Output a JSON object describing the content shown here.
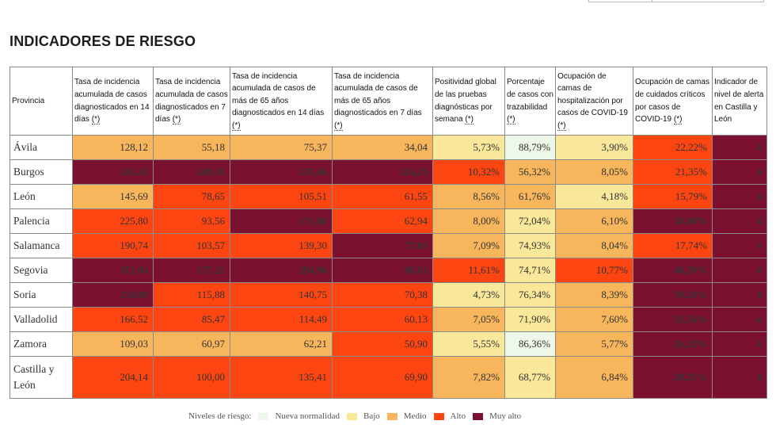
{
  "title": "INDICADORES DE RIESGO",
  "colors": {
    "nueva_normalidad": "#edf8e9",
    "bajo": "#f9e79a",
    "medio": "#f7b55c",
    "alto": "#fd4512",
    "muy_alto": "#7b1030"
  },
  "table": {
    "headers": [
      {
        "text": "Provincia",
        "star": ""
      },
      {
        "text": "Tasa de incidencia acumulada de casos diagnosticados en 14 días ",
        "star": "(*)"
      },
      {
        "text": "Tasa de incidencia acumulada de casos diagnosticados en 7 días ",
        "star": "(*)"
      },
      {
        "text": "Tasa de incidencia acumulada de casos de más de 65 años diagnosticados en 14 días ",
        "star": "(*)"
      },
      {
        "text": "Tasa de incidencia acumulada de casos de más de 65 años diagnosticados en 7 días ",
        "star": "(*)"
      },
      {
        "text": "Positividad global de las pruebas diagnósticas por semana ",
        "star": "(*)"
      },
      {
        "text": "Porcentaje de casos con trazabilidad ",
        "star": "(*)"
      },
      {
        "text": "Ocupación de camas de hospitalización por casos de COVID-19 ",
        "star": "(*)"
      },
      {
        "text": "Ocupación de camas de cuidados críticos por casos de COVID-19 ",
        "star": "(*)"
      },
      {
        "text": "Indicador de nivel de alerta en Castilla y León",
        "star": ""
      }
    ],
    "rows": [
      {
        "provincia": "Ávila",
        "cells": [
          {
            "v": "128,12",
            "lvl": "m"
          },
          {
            "v": "55,18",
            "lvl": "m"
          },
          {
            "v": "75,37",
            "lvl": "m"
          },
          {
            "v": "34,04",
            "lvl": "m"
          },
          {
            "v": "5,73%",
            "lvl": "b"
          },
          {
            "v": "88,79%",
            "lvl": "nn"
          },
          {
            "v": "3,90%",
            "lvl": "b"
          },
          {
            "v": "22,22%",
            "lvl": "a"
          },
          {
            "v": "4",
            "lvl": "ma"
          }
        ]
      },
      {
        "provincia": "Burgos",
        "cells": [
          {
            "v": "331,33",
            "lvl": "ma"
          },
          {
            "v": "149,31",
            "lvl": "ma"
          },
          {
            "v": "235,46",
            "lvl": "ma"
          },
          {
            "v": "114,23",
            "lvl": "ma"
          },
          {
            "v": "10,32%",
            "lvl": "a"
          },
          {
            "v": "56,32%",
            "lvl": "m"
          },
          {
            "v": "8,05%",
            "lvl": "m"
          },
          {
            "v": "21,35%",
            "lvl": "a"
          },
          {
            "v": "4",
            "lvl": "ma"
          }
        ]
      },
      {
        "provincia": "León",
        "cells": [
          {
            "v": "145,69",
            "lvl": "m"
          },
          {
            "v": "78,65",
            "lvl": "a"
          },
          {
            "v": "105,51",
            "lvl": "a"
          },
          {
            "v": "61,55",
            "lvl": "a"
          },
          {
            "v": "8,56%",
            "lvl": "m"
          },
          {
            "v": "61,76%",
            "lvl": "m"
          },
          {
            "v": "4,18%",
            "lvl": "b"
          },
          {
            "v": "15,79%",
            "lvl": "a"
          },
          {
            "v": "4",
            "lvl": "ma"
          }
        ]
      },
      {
        "provincia": "Palencia",
        "cells": [
          {
            "v": "225,80",
            "lvl": "a"
          },
          {
            "v": "93,56",
            "lvl": "a"
          },
          {
            "v": "171,88",
            "lvl": "ma"
          },
          {
            "v": "62,94",
            "lvl": "a"
          },
          {
            "v": "8,00%",
            "lvl": "m"
          },
          {
            "v": "72,04%",
            "lvl": "b"
          },
          {
            "v": "6,10%",
            "lvl": "m"
          },
          {
            "v": "50,00%",
            "lvl": "ma"
          },
          {
            "v": "4",
            "lvl": "ma"
          }
        ]
      },
      {
        "provincia": "Salamanca",
        "cells": [
          {
            "v": "190,74",
            "lvl": "a"
          },
          {
            "v": "103,57",
            "lvl": "a"
          },
          {
            "v": "139,30",
            "lvl": "a"
          },
          {
            "v": "77,01",
            "lvl": "ma"
          },
          {
            "v": "7,09%",
            "lvl": "m"
          },
          {
            "v": "74,93%",
            "lvl": "b"
          },
          {
            "v": "8,04%",
            "lvl": "m"
          },
          {
            "v": "17,74%",
            "lvl": "a"
          },
          {
            "v": "4",
            "lvl": "ma"
          }
        ]
      },
      {
        "provincia": "Segovia",
        "cells": [
          {
            "v": "372,04",
            "lvl": "ma"
          },
          {
            "v": "177,22",
            "lvl": "ma"
          },
          {
            "v": "194,96",
            "lvl": "ma"
          },
          {
            "v": "86,01",
            "lvl": "ma"
          },
          {
            "v": "11,61%",
            "lvl": "a"
          },
          {
            "v": "74,71%",
            "lvl": "b"
          },
          {
            "v": "10,77%",
            "lvl": "a"
          },
          {
            "v": "48,39%",
            "lvl": "ma"
          },
          {
            "v": "4",
            "lvl": "ma"
          }
        ]
      },
      {
        "provincia": "Soria",
        "cells": [
          {
            "v": "250,89",
            "lvl": "ma"
          },
          {
            "v": "115,88",
            "lvl": "a"
          },
          {
            "v": "140,75",
            "lvl": "a"
          },
          {
            "v": "70,38",
            "lvl": "a"
          },
          {
            "v": "4,73%",
            "lvl": "b"
          },
          {
            "v": "76,34%",
            "lvl": "b"
          },
          {
            "v": "8,39%",
            "lvl": "m"
          },
          {
            "v": "70,59%",
            "lvl": "ma"
          },
          {
            "v": "4",
            "lvl": "ma"
          }
        ]
      },
      {
        "provincia": "Valladolid",
        "cells": [
          {
            "v": "166,52",
            "lvl": "a"
          },
          {
            "v": "85,47",
            "lvl": "a"
          },
          {
            "v": "114,49",
            "lvl": "a"
          },
          {
            "v": "60,13",
            "lvl": "a"
          },
          {
            "v": "7,05%",
            "lvl": "m"
          },
          {
            "v": "71,90%",
            "lvl": "b"
          },
          {
            "v": "7,60%",
            "lvl": "m"
          },
          {
            "v": "32,56%",
            "lvl": "ma"
          },
          {
            "v": "4",
            "lvl": "ma"
          }
        ]
      },
      {
        "provincia": "Zamora",
        "cells": [
          {
            "v": "109,03",
            "lvl": "m"
          },
          {
            "v": "60,97",
            "lvl": "m"
          },
          {
            "v": "62,21",
            "lvl": "m"
          },
          {
            "v": "50,90",
            "lvl": "a"
          },
          {
            "v": "5,55%",
            "lvl": "b"
          },
          {
            "v": "86,36%",
            "lvl": "nn"
          },
          {
            "v": "5,77%",
            "lvl": "m"
          },
          {
            "v": "26,32%",
            "lvl": "ma"
          },
          {
            "v": "4",
            "lvl": "ma"
          }
        ]
      },
      {
        "provincia": "Castilla y León",
        "cells": [
          {
            "v": "204,14",
            "lvl": "a"
          },
          {
            "v": "100,00",
            "lvl": "a"
          },
          {
            "v": "135,41",
            "lvl": "a"
          },
          {
            "v": "69,90",
            "lvl": "a"
          },
          {
            "v": "7,82%",
            "lvl": "m"
          },
          {
            "v": "68,77%",
            "lvl": "b"
          },
          {
            "v": "6,84%",
            "lvl": "m"
          },
          {
            "v": "28,25%",
            "lvl": "ma"
          },
          {
            "v": "4",
            "lvl": "ma"
          }
        ]
      }
    ]
  },
  "legend": {
    "label": "Niveles de riesgo:",
    "items": [
      {
        "label": "Nueva normalidad",
        "lvl": "nn"
      },
      {
        "label": "Bajo",
        "lvl": "b"
      },
      {
        "label": "Medio",
        "lvl": "m"
      },
      {
        "label": "Alto",
        "lvl": "a"
      },
      {
        "label": "Muy alto",
        "lvl": "ma"
      }
    ]
  }
}
